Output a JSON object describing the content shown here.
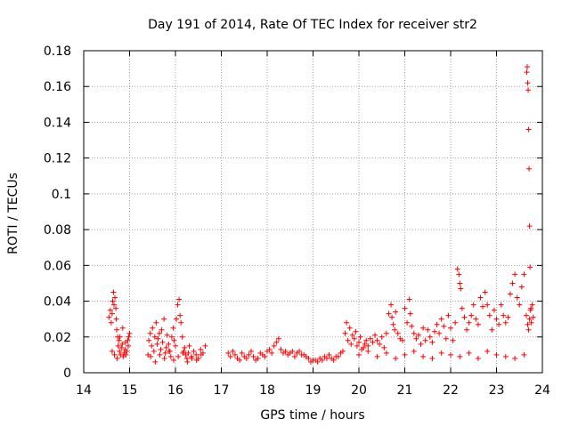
{
  "chart_data": {
    "type": "scatter",
    "title": "Day 191 of 2014, Rate Of TEC Index for receiver str2",
    "xlabel": "GPS time / hours",
    "ylabel": "ROTI / TECUs",
    "xlim": [
      14,
      24
    ],
    "ylim": [
      0,
      0.18
    ],
    "grid": true,
    "legend": "none",
    "marker": "+",
    "x_ticks": [
      14,
      15,
      16,
      17,
      18,
      19,
      20,
      21,
      22,
      23,
      24
    ],
    "x_tick_labels": [
      "14",
      "15",
      "16",
      "17",
      "18",
      "19",
      "20",
      "21",
      "22",
      "23",
      "24"
    ],
    "y_ticks": [
      0,
      0.02,
      0.04,
      0.06,
      0.08,
      0.1,
      0.12,
      0.14,
      0.16,
      0.18
    ],
    "y_tick_labels": [
      "0",
      "0.02",
      "0.04",
      "0.06",
      "0.08",
      "0.1",
      "0.12",
      "0.14",
      "0.16",
      "0.18"
    ],
    "series": [
      {
        "name": "ROTI str2",
        "color": "#ff0000",
        "x": [
          14.55,
          14.58,
          14.6,
          14.62,
          14.63,
          14.65,
          14.66,
          14.68,
          14.7,
          14.71,
          14.72,
          14.74,
          14.75,
          14.77,
          14.78,
          14.8,
          14.82,
          14.84,
          14.86,
          14.88,
          14.9,
          14.92,
          14.94,
          14.96,
          14.98,
          15.0,
          14.62,
          14.67,
          14.73,
          14.79,
          14.85,
          14.91,
          14.97,
          15.4,
          15.42,
          15.45,
          15.48,
          15.5,
          15.53,
          15.55,
          15.58,
          15.6,
          15.62,
          15.65,
          15.68,
          15.7,
          15.72,
          15.75,
          15.78,
          15.8,
          15.82,
          15.85,
          15.88,
          15.9,
          15.92,
          15.95,
          15.97,
          16.0,
          16.02,
          16.05,
          16.08,
          16.1,
          16.12,
          16.15,
          16.18,
          16.2,
          16.22,
          16.25,
          16.28,
          16.3,
          16.35,
          16.4,
          16.45,
          16.5,
          16.55,
          16.6,
          16.65,
          15.46,
          15.56,
          15.66,
          15.76,
          15.86,
          15.96,
          16.06,
          16.16,
          16.26,
          16.36,
          16.46,
          16.56,
          17.15,
          17.2,
          17.25,
          17.3,
          17.35,
          17.4,
          17.45,
          17.5,
          17.55,
          17.6,
          17.65,
          17.7,
          17.75,
          17.8,
          17.85,
          17.9,
          17.95,
          18.0,
          18.05,
          18.1,
          18.15,
          18.2,
          18.25,
          18.3,
          18.35,
          18.4,
          18.45,
          18.5,
          18.55,
          18.6,
          18.65,
          18.7,
          18.75,
          18.8,
          18.85,
          18.9,
          18.95,
          19.0,
          19.05,
          19.1,
          19.15,
          19.2,
          19.25,
          19.3,
          19.35,
          19.4,
          19.45,
          19.5,
          19.55,
          19.6,
          19.65,
          19.7,
          19.73,
          19.76,
          19.8,
          19.83,
          19.86,
          19.9,
          19.93,
          19.96,
          20.0,
          20.03,
          20.06,
          20.1,
          20.13,
          20.16,
          20.2,
          20.25,
          20.3,
          20.35,
          20.4,
          20.45,
          20.5,
          20.55,
          20.6,
          20.65,
          20.7,
          20.72,
          20.75,
          20.78,
          20.8,
          20.85,
          20.9,
          20.95,
          21.0,
          21.05,
          21.1,
          21.12,
          21.15,
          21.2,
          21.25,
          21.3,
          21.35,
          21.4,
          21.45,
          21.5,
          21.55,
          21.6,
          21.65,
          21.7,
          21.75,
          21.8,
          21.85,
          21.9,
          21.95,
          22.0,
          22.05,
          22.1,
          22.15,
          22.18,
          22.2,
          22.22,
          22.25,
          22.3,
          22.35,
          22.4,
          22.45,
          22.5,
          22.55,
          22.6,
          22.65,
          22.7,
          22.75,
          22.8,
          22.85,
          22.9,
          22.95,
          23.0,
          23.05,
          23.1,
          23.15,
          23.2,
          23.25,
          23.3,
          23.35,
          23.4,
          23.45,
          23.5,
          23.55,
          23.6,
          23.65,
          23.68,
          23.7,
          23.72,
          23.74,
          23.75,
          23.76,
          23.78,
          23.8,
          20.0,
          20.2,
          20.4,
          20.6,
          20.8,
          21.0,
          21.2,
          21.4,
          21.6,
          21.8,
          22.0,
          22.2,
          22.4,
          22.6,
          22.8,
          23.0,
          23.2,
          23.4,
          23.6,
          23.66,
          23.67,
          23.68,
          23.69,
          23.7,
          23.71,
          23.72,
          23.73
        ],
        "y": [
          0.031,
          0.035,
          0.028,
          0.033,
          0.04,
          0.045,
          0.038,
          0.042,
          0.036,
          0.03,
          0.024,
          0.02,
          0.015,
          0.018,
          0.012,
          0.01,
          0.014,
          0.016,
          0.009,
          0.011,
          0.013,
          0.01,
          0.012,
          0.018,
          0.02,
          0.022,
          0.012,
          0.01,
          0.008,
          0.02,
          0.025,
          0.017,
          0.015,
          0.01,
          0.018,
          0.022,
          0.015,
          0.025,
          0.012,
          0.02,
          0.028,
          0.016,
          0.019,
          0.022,
          0.013,
          0.024,
          0.017,
          0.03,
          0.011,
          0.014,
          0.021,
          0.016,
          0.012,
          0.009,
          0.02,
          0.025,
          0.018,
          0.015,
          0.03,
          0.038,
          0.041,
          0.032,
          0.028,
          0.02,
          0.012,
          0.014,
          0.01,
          0.008,
          0.011,
          0.015,
          0.009,
          0.012,
          0.01,
          0.008,
          0.013,
          0.011,
          0.015,
          0.009,
          0.006,
          0.01,
          0.008,
          0.012,
          0.007,
          0.009,
          0.011,
          0.006,
          0.008,
          0.007,
          0.01,
          0.011,
          0.009,
          0.012,
          0.01,
          0.008,
          0.007,
          0.011,
          0.009,
          0.008,
          0.01,
          0.012,
          0.009,
          0.007,
          0.008,
          0.011,
          0.01,
          0.009,
          0.012,
          0.013,
          0.011,
          0.015,
          0.017,
          0.019,
          0.013,
          0.011,
          0.012,
          0.01,
          0.011,
          0.012,
          0.009,
          0.011,
          0.012,
          0.01,
          0.01,
          0.009,
          0.008,
          0.006,
          0.007,
          0.007,
          0.006,
          0.008,
          0.007,
          0.009,
          0.008,
          0.01,
          0.008,
          0.007,
          0.009,
          0.009,
          0.011,
          0.012,
          0.022,
          0.028,
          0.018,
          0.025,
          0.016,
          0.021,
          0.019,
          0.023,
          0.015,
          0.017,
          0.02,
          0.013,
          0.014,
          0.016,
          0.018,
          0.015,
          0.019,
          0.017,
          0.021,
          0.018,
          0.016,
          0.02,
          0.014,
          0.022,
          0.033,
          0.038,
          0.031,
          0.027,
          0.024,
          0.034,
          0.022,
          0.019,
          0.018,
          0.036,
          0.028,
          0.041,
          0.033,
          0.026,
          0.022,
          0.019,
          0.021,
          0.016,
          0.025,
          0.018,
          0.024,
          0.02,
          0.017,
          0.023,
          0.027,
          0.022,
          0.03,
          0.026,
          0.019,
          0.032,
          0.025,
          0.018,
          0.028,
          0.058,
          0.055,
          0.05,
          0.047,
          0.036,
          0.031,
          0.024,
          0.028,
          0.032,
          0.038,
          0.03,
          0.027,
          0.042,
          0.037,
          0.045,
          0.038,
          0.032,
          0.024,
          0.035,
          0.03,
          0.027,
          0.038,
          0.032,
          0.028,
          0.031,
          0.044,
          0.05,
          0.055,
          0.042,
          0.038,
          0.048,
          0.055,
          0.032,
          0.027,
          0.024,
          0.03,
          0.035,
          0.036,
          0.028,
          0.038,
          0.031,
          0.01,
          0.012,
          0.009,
          0.011,
          0.008,
          0.01,
          0.012,
          0.009,
          0.008,
          0.011,
          0.01,
          0.009,
          0.011,
          0.008,
          0.012,
          0.01,
          0.009,
          0.008,
          0.01,
          0.168,
          0.171,
          0.162,
          0.158,
          0.136,
          0.114,
          0.082,
          0.059
        ]
      }
    ]
  }
}
